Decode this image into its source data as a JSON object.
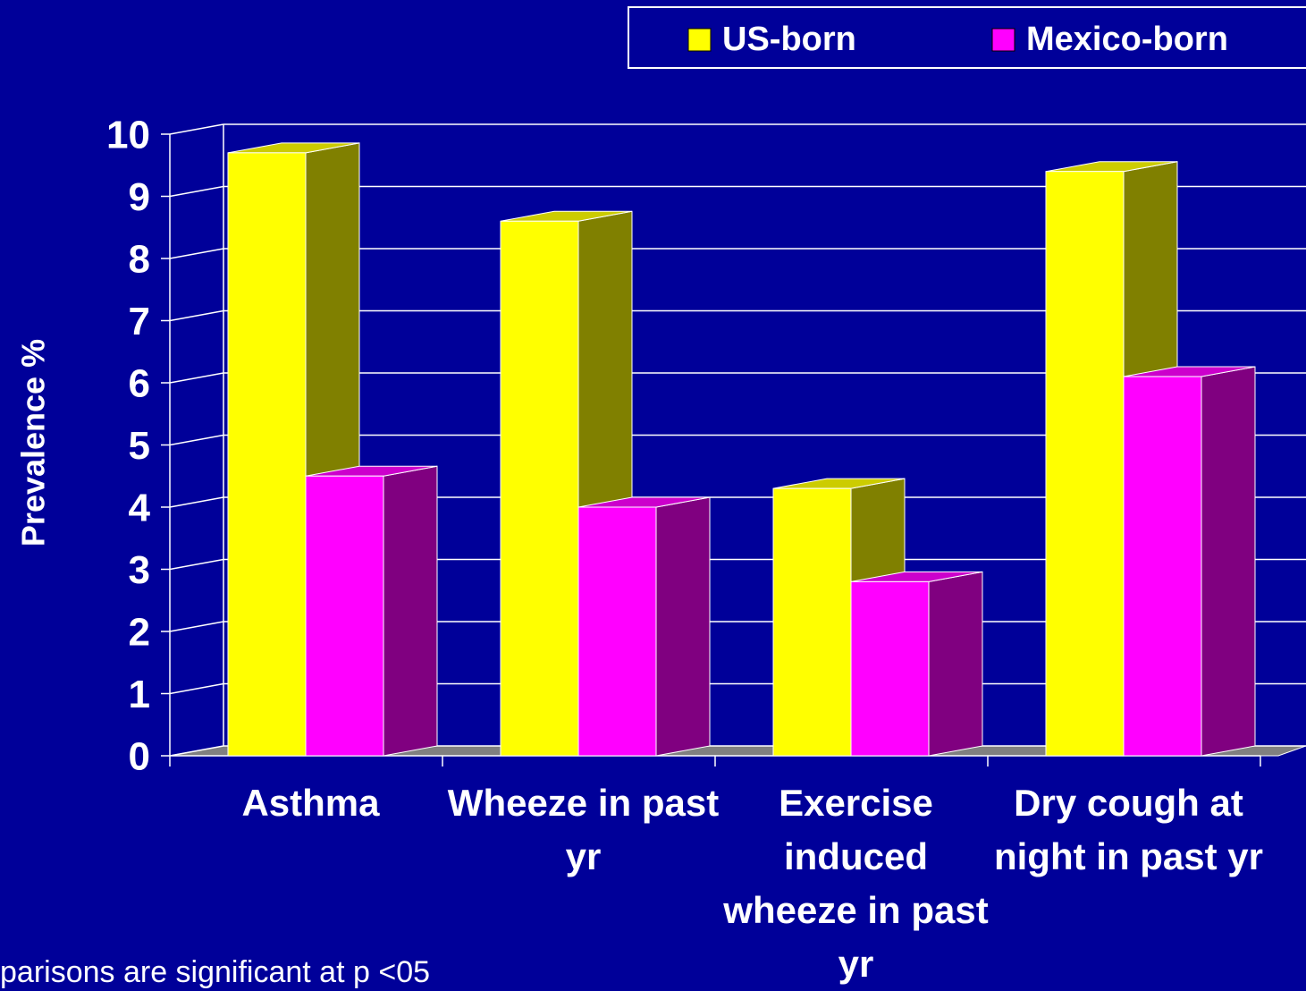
{
  "chart_data": {
    "type": "bar3d",
    "categories": [
      "Asthma",
      "Wheeze in past yr",
      "Exercise induced wheeze in past yr",
      "Dry cough at night in past yr"
    ],
    "series": [
      {
        "name": "US-born",
        "color": "#ffff00",
        "values": [
          9.7,
          8.6,
          4.3,
          9.4
        ]
      },
      {
        "name": "Mexico-born",
        "color": "#ff00ff",
        "values": [
          4.5,
          4.0,
          2.8,
          6.1
        ]
      }
    ],
    "y_label": "Prevalence %",
    "ylim": [
      0,
      10
    ],
    "yticks": [
      0,
      1,
      2,
      3,
      4,
      5,
      6,
      7,
      8,
      9,
      10
    ],
    "grid": true,
    "legend": "top-right",
    "footnote": "parisons are significant at p <05"
  }
}
